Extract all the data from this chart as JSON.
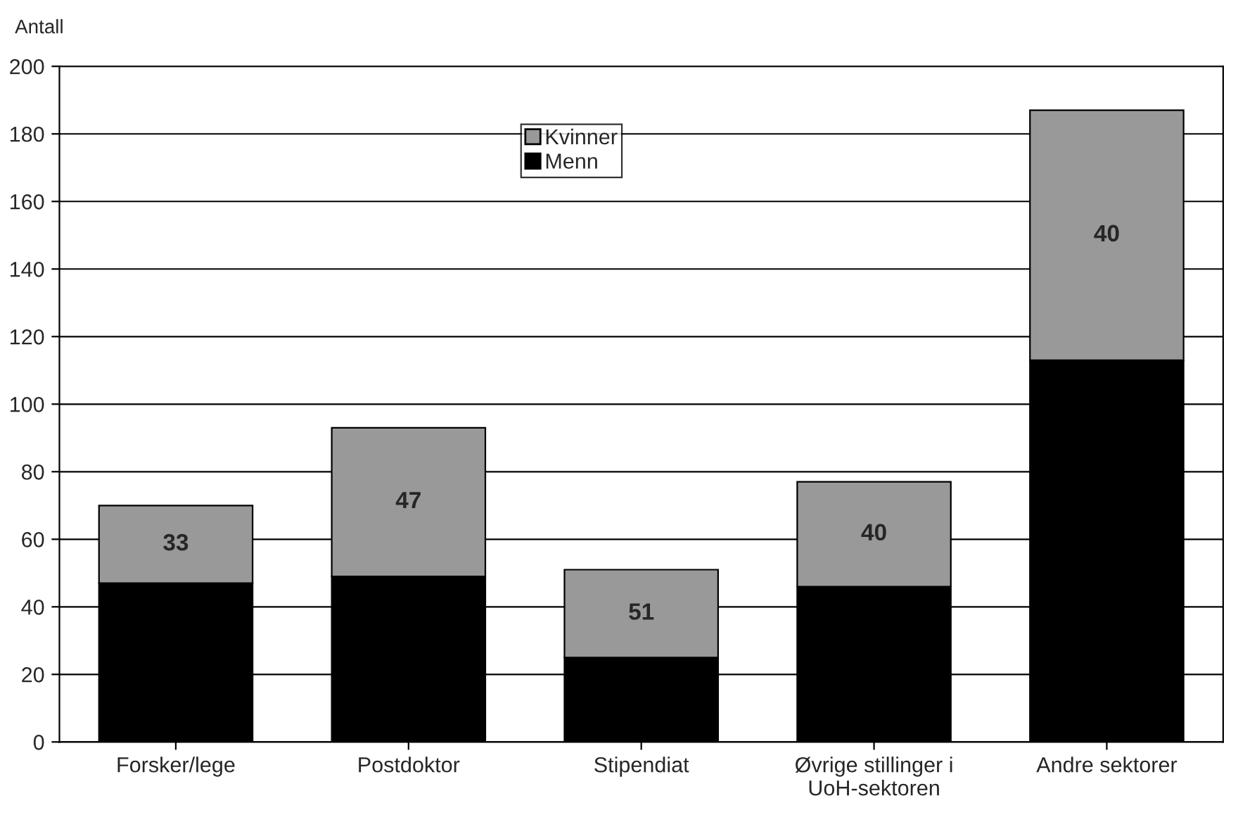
{
  "chart_data": {
    "type": "bar",
    "stacked": true,
    "ylabel": "Antall",
    "categories": [
      "Forsker/lege",
      "Postdoktor",
      "Stipendiat",
      "Øvrige stillinger i\nUoH-sektoren",
      "Andre sektorer"
    ],
    "series": [
      {
        "name": "Menn",
        "color": "#000000",
        "values": [
          47,
          49,
          25,
          46,
          113
        ]
      },
      {
        "name": "Kvinner",
        "color": "#999999",
        "values": [
          23,
          44,
          26,
          31,
          74
        ]
      }
    ],
    "annotations": [
      "33",
      "47",
      "51",
      "40",
      "40"
    ],
    "ylim": [
      0,
      200
    ],
    "yticks": [
      0,
      20,
      40,
      60,
      80,
      100,
      120,
      140,
      160,
      180,
      200
    ],
    "grid": "y",
    "legend": "top"
  }
}
